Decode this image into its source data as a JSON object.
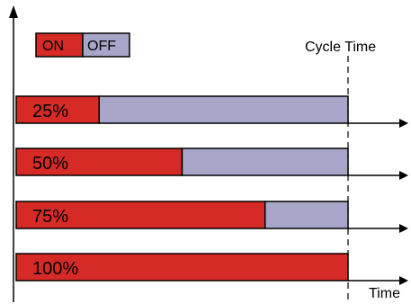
{
  "legend": {
    "on_label": "ON",
    "off_label": "OFF"
  },
  "labels": {
    "cycle_time": "Cycle Time",
    "time": "Time"
  },
  "colors": {
    "on": "#d62a27",
    "off": "#a8a6c8",
    "stroke": "#000000"
  },
  "chart_data": {
    "type": "bar",
    "categories": [
      "25%",
      "50%",
      "75%",
      "100%"
    ],
    "series": [
      {
        "name": "ON",
        "values": [
          25,
          50,
          75,
          100
        ]
      },
      {
        "name": "OFF",
        "values": [
          75,
          50,
          25,
          0
        ]
      }
    ],
    "xlabel": "Time",
    "annotations": [
      "Cycle Time"
    ],
    "ylim": [
      0,
      100
    ]
  }
}
